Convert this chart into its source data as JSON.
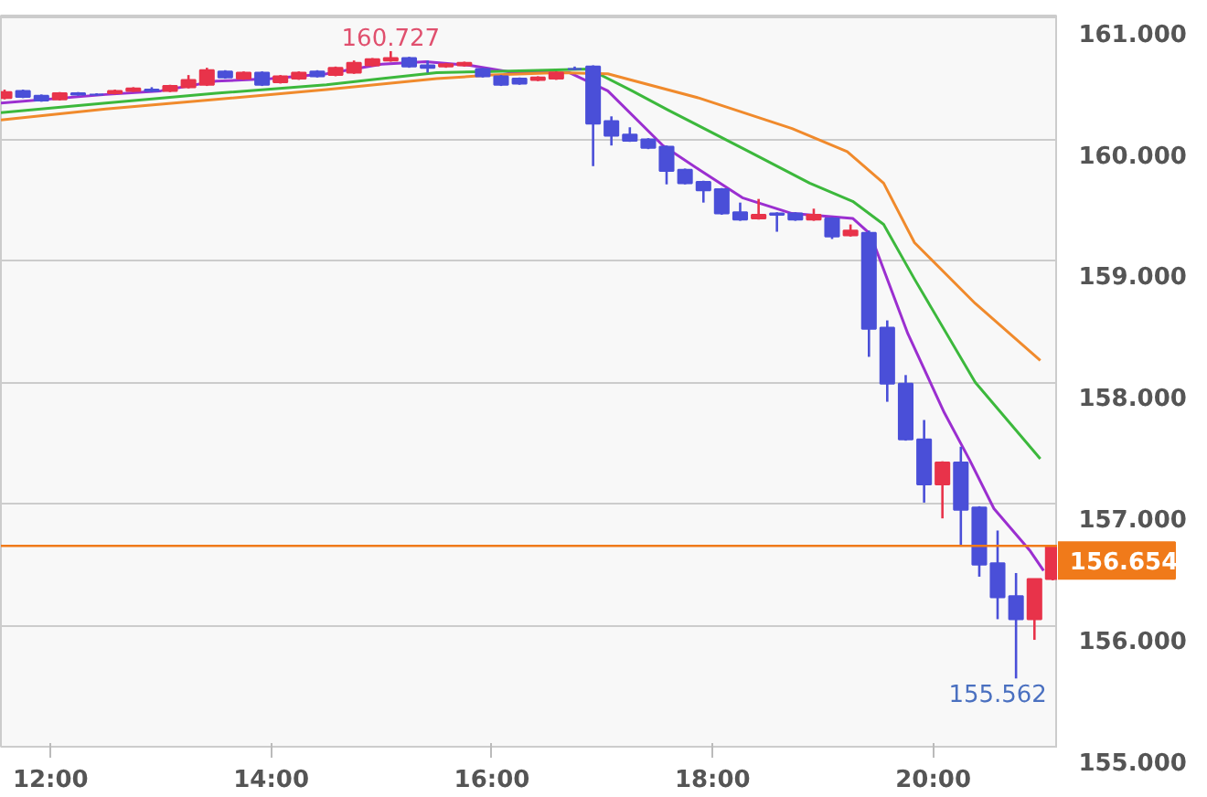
{
  "chart_data": {
    "type": "candlestick",
    "colors": [
      "#e8334a",
      "#4a4fd8",
      "#4a4fd8",
      "#e8334a",
      "#4a4fd8",
      "#4a4fd8",
      "#e8334a",
      "#e8334a",
      "#4a4fd8",
      "#e8334a",
      "#e8334a",
      "#e8334a",
      "#4a4fd8",
      "#e8334a",
      "#4a4fd8",
      "#e8334a",
      "#e8334a",
      "#4a4fd8",
      "#e8334a",
      "#e8334a",
      "#e8334a",
      "#e8334a",
      "#4a4fd8",
      "#4a4fd8",
      "#e8334a",
      "#e8334a",
      "#4a4fd8",
      "#4a4fd8",
      "#4a4fd8",
      "#e8334a",
      "#e8334a",
      "#4a4fd8",
      "#4a4fd8",
      "#4a4fd8",
      "#4a4fd8",
      "#4a4fd8",
      "#4a4fd8",
      "#4a4fd8",
      "#4a4fd8",
      "#4a4fd8",
      "#4a4fd8",
      "#e8334a",
      "#4a4fd8",
      "#4a4fd8",
      "#e8334a",
      "#4a4fd8",
      "#e8334a",
      "#4a4fd8",
      "#4a4fd8",
      "#4a4fd8",
      "#4a4fd8",
      "#e8334a",
      "#4a4fd8",
      "#4a4fd8",
      "#4a4fd8",
      "#4a4fd8",
      "#e8334a",
      "#e8334a"
    ],
    "x": [
      11.583,
      11.75,
      11.917,
      12.083,
      12.25,
      12.417,
      12.583,
      12.75,
      12.917,
      13.083,
      13.25,
      13.417,
      13.583,
      13.75,
      13.917,
      14.083,
      14.25,
      14.417,
      14.583,
      14.75,
      14.917,
      15.083,
      15.25,
      15.417,
      15.583,
      15.75,
      15.917,
      16.083,
      16.25,
      16.417,
      16.583,
      16.75,
      16.917,
      17.083,
      17.25,
      17.417,
      17.583,
      17.75,
      17.917,
      18.083,
      18.25,
      18.417,
      18.583,
      18.75,
      18.917,
      19.083,
      19.25,
      19.417,
      19.583,
      19.75,
      19.917,
      20.083,
      20.25,
      20.417,
      20.583,
      20.75,
      20.917,
      21.083
    ],
    "ohlc": [
      [
        160.34,
        160.41,
        160.33,
        160.39
      ],
      [
        160.4,
        160.41,
        160.34,
        160.35
      ],
      [
        160.36,
        160.37,
        160.31,
        160.32
      ],
      [
        160.33,
        160.39,
        160.32,
        160.38
      ],
      [
        160.38,
        160.39,
        160.36,
        160.37
      ],
      [
        160.37,
        160.38,
        160.36,
        160.37
      ],
      [
        160.38,
        160.41,
        160.37,
        160.4
      ],
      [
        160.4,
        160.43,
        160.39,
        160.42
      ],
      [
        160.41,
        160.43,
        160.39,
        160.4
      ],
      [
        160.4,
        160.45,
        160.39,
        160.44
      ],
      [
        160.43,
        160.53,
        160.42,
        160.49
      ],
      [
        160.45,
        160.59,
        160.44,
        160.57
      ],
      [
        160.56,
        160.57,
        160.5,
        160.51
      ],
      [
        160.5,
        160.56,
        160.49,
        160.55
      ],
      [
        160.55,
        160.56,
        160.44,
        160.45
      ],
      [
        160.47,
        160.53,
        160.46,
        160.52
      ],
      [
        160.5,
        160.56,
        160.49,
        160.55
      ],
      [
        160.56,
        160.57,
        160.51,
        160.52
      ],
      [
        160.53,
        160.6,
        160.52,
        160.59
      ],
      [
        160.55,
        160.65,
        160.54,
        160.63
      ],
      [
        160.61,
        160.67,
        160.6,
        160.66
      ],
      [
        160.65,
        160.727,
        160.64,
        160.67
      ],
      [
        160.67,
        160.68,
        160.59,
        160.6
      ],
      [
        160.61,
        160.65,
        160.55,
        160.59
      ],
      [
        160.6,
        160.63,
        160.59,
        160.62
      ],
      [
        160.61,
        160.64,
        160.6,
        160.63
      ],
      [
        160.58,
        160.59,
        160.51,
        160.52
      ],
      [
        160.52,
        160.53,
        160.44,
        160.45
      ],
      [
        160.5,
        160.51,
        160.45,
        160.46
      ],
      [
        160.49,
        160.52,
        160.48,
        160.51
      ],
      [
        160.5,
        160.56,
        160.49,
        160.55
      ],
      [
        160.58,
        160.6,
        160.57,
        160.58
      ],
      [
        160.6,
        160.61,
        159.78,
        160.13
      ],
      [
        160.15,
        160.19,
        159.95,
        160.03
      ],
      [
        160.04,
        160.1,
        159.98,
        159.99
      ],
      [
        160.0,
        160.01,
        159.92,
        159.93
      ],
      [
        159.94,
        159.95,
        159.63,
        159.74
      ],
      [
        159.75,
        159.76,
        159.63,
        159.64
      ],
      [
        159.65,
        159.66,
        159.48,
        159.58
      ],
      [
        159.59,
        159.6,
        159.38,
        159.39
      ],
      [
        159.4,
        159.48,
        159.33,
        159.34
      ],
      [
        159.35,
        159.51,
        159.34,
        159.38
      ],
      [
        159.39,
        159.4,
        159.24,
        159.38
      ],
      [
        159.39,
        159.4,
        159.33,
        159.34
      ],
      [
        159.34,
        159.43,
        159.33,
        159.38
      ],
      [
        159.35,
        159.36,
        159.18,
        159.2
      ],
      [
        159.21,
        159.3,
        159.2,
        159.25
      ],
      [
        159.23,
        159.25,
        158.21,
        158.44
      ],
      [
        158.45,
        158.51,
        157.84,
        157.99
      ],
      [
        157.99,
        158.06,
        157.52,
        157.53
      ],
      [
        157.53,
        157.69,
        157.01,
        157.16
      ],
      [
        157.16,
        157.35,
        156.88,
        157.34
      ],
      [
        157.34,
        157.47,
        156.66,
        156.95
      ],
      [
        156.97,
        156.98,
        156.4,
        156.5
      ],
      [
        156.51,
        156.78,
        156.05,
        156.23
      ],
      [
        156.24,
        156.43,
        155.562,
        156.05
      ],
      [
        156.05,
        156.38,
        155.88,
        156.38
      ],
      [
        156.38,
        156.654,
        156.37,
        156.654
      ]
    ],
    "series": [
      {
        "type": "line",
        "color": "#9b2fd0",
        "x": [
          11.55,
          12.5,
          13.0,
          13.5,
          14.0,
          14.5,
          15.0,
          15.4,
          15.8,
          16.2,
          16.7,
          17.05,
          17.55,
          17.88,
          18.27,
          18.72,
          19.27,
          19.43,
          19.5,
          19.77,
          20.1,
          20.33,
          20.55,
          20.88,
          21.0
        ],
        "values": [
          160.3,
          160.37,
          160.4,
          160.48,
          160.5,
          160.54,
          160.62,
          160.64,
          160.61,
          160.55,
          160.55,
          160.4,
          159.95,
          159.75,
          159.52,
          159.39,
          159.35,
          159.22,
          159.05,
          158.4,
          157.75,
          157.36,
          156.96,
          156.61,
          156.45
        ]
      },
      {
        "type": "line",
        "color": "#3cb83c",
        "x": [
          11.55,
          12.5,
          13.5,
          14.5,
          15.0,
          15.5,
          16.0,
          16.5,
          16.88,
          17.27,
          17.6,
          18.33,
          18.88,
          19.27,
          19.55,
          19.83,
          20.38,
          20.97
        ],
        "values": [
          160.22,
          160.3,
          160.38,
          160.45,
          160.5,
          160.55,
          160.56,
          160.57,
          160.58,
          160.4,
          160.24,
          159.9,
          159.64,
          159.49,
          159.3,
          158.85,
          158.0,
          157.37
        ]
      },
      {
        "type": "line",
        "color": "#f08a2c",
        "x": [
          11.55,
          12.5,
          13.5,
          14.5,
          15.5,
          16.0,
          16.6,
          17.05,
          17.88,
          18.72,
          19.22,
          19.55,
          19.83,
          20.38,
          20.97
        ],
        "values": [
          160.16,
          160.25,
          160.33,
          160.41,
          160.5,
          160.53,
          160.55,
          160.54,
          160.34,
          160.09,
          159.9,
          159.64,
          159.15,
          158.65,
          158.18
        ]
      }
    ],
    "ref_lines": [
      {
        "axis": "y",
        "value": 156.654,
        "label": "156.654",
        "color": "#f07a1a"
      }
    ],
    "annotations": [
      {
        "text": "160.727",
        "x": 15.083,
        "y": 160.727
      },
      {
        "text": "155.562",
        "x": 20.75,
        "y": 155.562
      }
    ],
    "xlim": [
      11.55,
      21.13
    ],
    "xticks": [
      {
        "value": 12,
        "label": "12:00"
      },
      {
        "value": 14,
        "label": "14:00"
      },
      {
        "value": 16,
        "label": "16:00"
      },
      {
        "value": 18,
        "label": "18:00"
      },
      {
        "value": 20,
        "label": "20:00"
      }
    ],
    "ylim": [
      155,
      161.02
    ],
    "yticks": [
      {
        "value": 155,
        "label": "155.000"
      },
      {
        "value": 156,
        "label": "156.000"
      },
      {
        "value": 157,
        "label": "157.000"
      },
      {
        "value": 158,
        "label": "158.000"
      },
      {
        "value": 159,
        "label": "159.000"
      },
      {
        "value": 160,
        "label": "160.000"
      },
      {
        "value": 161,
        "label": "161.000"
      }
    ],
    "grid": "y"
  }
}
